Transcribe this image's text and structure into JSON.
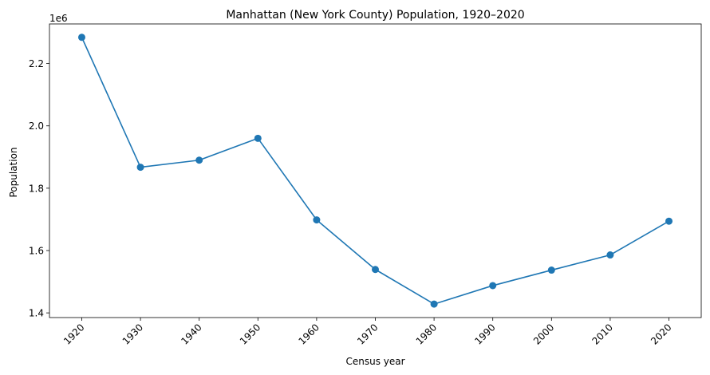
{
  "chart_data": {
    "type": "line",
    "title": "Manhattan (New York County) Population, 1920–2020",
    "xlabel": "Census year",
    "ylabel": "Population",
    "y_offset_label": "1e6",
    "y_scale": 1000000,
    "x": [
      1920,
      1930,
      1940,
      1950,
      1960,
      1970,
      1980,
      1990,
      2000,
      2010,
      2020
    ],
    "x_tick_labels": [
      "1920",
      "1930",
      "1940",
      "1950",
      "1960",
      "1970",
      "1980",
      "1990",
      "2000",
      "2010",
      "2020"
    ],
    "series": [
      {
        "name": "Population",
        "values": [
          2284103,
          1867312,
          1889924,
          1960101,
          1698281,
          1539233,
          1428285,
          1487536,
          1537195,
          1585873,
          1694251
        ],
        "color": "#1f77b4",
        "marker": "circle"
      }
    ],
    "y_ticks": [
      1400000,
      1600000,
      1800000,
      2000000,
      2200000
    ],
    "y_tick_labels": [
      "1.4",
      "1.6",
      "1.8",
      "2.0",
      "2.2"
    ],
    "ylim": [
      1385000,
      2327000
    ],
    "xlim": [
      1914.5,
      2025.5
    ],
    "grid": false,
    "legend": false
  }
}
